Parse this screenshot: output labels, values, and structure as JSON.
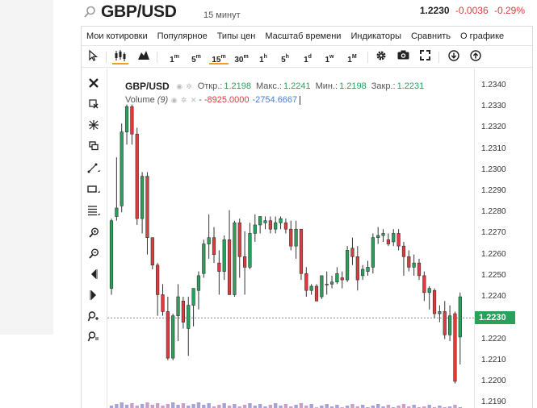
{
  "header": {
    "symbol": "GBP/USD",
    "interval": "15 минут",
    "last": "1.2230",
    "change": "-0.0036",
    "change_pct": "-0.29%"
  },
  "menu": [
    "Мои котировки",
    "Популярное",
    "Типы цен",
    "Масштаб времени",
    "Индикаторы",
    "Сравнить",
    "О графике"
  ],
  "toolbar": {
    "timeframes": [
      {
        "num": "1",
        "unit": "m"
      },
      {
        "num": "5",
        "unit": "m"
      },
      {
        "num": "15",
        "unit": "m"
      },
      {
        "num": "30",
        "unit": "m"
      },
      {
        "num": "1",
        "unit": "h"
      },
      {
        "num": "5",
        "unit": "h"
      },
      {
        "num": "1",
        "unit": "d"
      },
      {
        "num": "1",
        "unit": "w"
      },
      {
        "num": "1",
        "unit": "M"
      }
    ],
    "active_timeframe": "15m",
    "icons": [
      "cursor-icon",
      "candles-icon",
      "area-icon",
      "gear-icon",
      "camera-icon",
      "fullscreen-icon",
      "download-icon",
      "upload-icon"
    ]
  },
  "drawing_tools": [
    "close-icon",
    "cursor-cross-icon",
    "sparkle-icon",
    "layers-icon",
    "trend-line-icon",
    "rectangle-icon",
    "fibonacci-icon",
    "zoom-in-icon",
    "zoom-out-icon",
    "scroll-left-icon",
    "scroll-right-icon",
    "zoom-reset-icon",
    "zoom-fit-icon"
  ],
  "legend": {
    "symbol": "GBP/USD",
    "open_label": "Откр.:",
    "open": "1.2198",
    "high_label": "Макс.:",
    "high": "1.2241",
    "low_label": "Мин.:",
    "low": "1.2198",
    "close_label": "Закр.:",
    "close": "1.2231",
    "volume_label": "Volume",
    "volume_period": "(9)",
    "volume_val1": "-8925.0000",
    "volume_val2": "-2754.6667"
  },
  "price_axis": {
    "ticks": [
      "1.2340",
      "1.2330",
      "1.2320",
      "1.2310",
      "1.2300",
      "1.2290",
      "1.2280",
      "1.2270",
      "1.2260",
      "1.2250",
      "1.2240",
      "1.2230",
      "1.2220",
      "1.2210",
      "1.2200",
      "1.2190"
    ],
    "last_price_label": "1.2230"
  },
  "colors": {
    "up": "#26a25a",
    "down": "#e0393e",
    "accent": "#f0a020",
    "volume": "#a7a2d8"
  },
  "chart_data": {
    "type": "candlestick",
    "ylim": [
      1.2187,
      1.2348
    ],
    "last_price": 1.223,
    "candles": [
      [
        1.2244,
        1.2277,
        1.2241,
        1.2276
      ],
      [
        1.2278,
        1.2306,
        1.2276,
        1.2282
      ],
      [
        1.2283,
        1.2322,
        1.228,
        1.2318
      ],
      [
        1.2318,
        1.2331,
        1.2312,
        1.233
      ],
      [
        1.233,
        1.2331,
        1.2312,
        1.2317
      ],
      [
        1.2317,
        1.232,
        1.2274,
        1.2277
      ],
      [
        1.2277,
        1.2299,
        1.227,
        1.2297
      ],
      [
        1.2297,
        1.2299,
        1.226,
        1.2268
      ],
      [
        1.2268,
        1.2268,
        1.2253,
        1.2255
      ],
      [
        1.2255,
        1.2256,
        1.2231,
        1.2241
      ],
      [
        1.2241,
        1.2246,
        1.2231,
        1.2233
      ],
      [
        1.2233,
        1.224,
        1.221,
        1.2211
      ],
      [
        1.2211,
        1.2232,
        1.221,
        1.2231
      ],
      [
        1.2231,
        1.2246,
        1.2219,
        1.224
      ],
      [
        1.2238,
        1.224,
        1.2225,
        1.2228
      ],
      [
        1.2225,
        1.224,
        1.2212,
        1.2236
      ],
      [
        1.2236,
        1.2244,
        1.2226,
        1.2244
      ],
      [
        1.2243,
        1.2252,
        1.2234,
        1.225
      ],
      [
        1.2251,
        1.2267,
        1.2249,
        1.2265
      ],
      [
        1.2265,
        1.2279,
        1.2258,
        1.2268
      ],
      [
        1.2268,
        1.2273,
        1.2256,
        1.226
      ],
      [
        1.2256,
        1.2262,
        1.2241,
        1.2252
      ],
      [
        1.2252,
        1.2269,
        1.2248,
        1.2267
      ],
      [
        1.2267,
        1.2281,
        1.2241,
        1.2241
      ],
      [
        1.2241,
        1.2276,
        1.224,
        1.2275
      ],
      [
        1.2275,
        1.2277,
        1.2249,
        1.2259
      ],
      [
        1.2259,
        1.2271,
        1.2241,
        1.2254
      ],
      [
        1.2254,
        1.2275,
        1.2253,
        1.227
      ],
      [
        1.227,
        1.2279,
        1.2266,
        1.2274
      ],
      [
        1.2274,
        1.2278,
        1.227,
        1.2278
      ],
      [
        1.2275,
        1.2278,
        1.2272,
        1.2276
      ],
      [
        1.2276,
        1.2278,
        1.227,
        1.2272
      ],
      [
        1.2272,
        1.2278,
        1.227,
        1.2275
      ],
      [
        1.2275,
        1.2278,
        1.2272,
        1.2277
      ],
      [
        1.2275,
        1.2277,
        1.227,
        1.2272
      ],
      [
        1.2272,
        1.2276,
        1.2262,
        1.2264
      ],
      [
        1.2264,
        1.2276,
        1.2258,
        1.2272
      ],
      [
        1.2272,
        1.2272,
        1.2248,
        1.2251
      ],
      [
        1.2251,
        1.2254,
        1.224,
        1.2243
      ],
      [
        1.2243,
        1.2246,
        1.2241,
        1.2245
      ],
      [
        1.2245,
        1.2246,
        1.2238,
        1.2238
      ],
      [
        1.224,
        1.225,
        1.2239,
        1.225
      ],
      [
        1.2246,
        1.2252,
        1.2241,
        1.2246
      ],
      [
        1.2246,
        1.225,
        1.2244,
        1.2247
      ],
      [
        1.2247,
        1.2254,
        1.2246,
        1.2251
      ],
      [
        1.2249,
        1.2252,
        1.2244,
        1.2248
      ],
      [
        1.2248,
        1.2264,
        1.2247,
        1.2262
      ],
      [
        1.2263,
        1.2268,
        1.2255,
        1.2259
      ],
      [
        1.2259,
        1.2264,
        1.2243,
        1.2248
      ],
      [
        1.225,
        1.2255,
        1.2248,
        1.2253
      ],
      [
        1.2252,
        1.2257,
        1.225,
        1.2254
      ],
      [
        1.2254,
        1.227,
        1.2251,
        1.2268
      ],
      [
        1.2268,
        1.2273,
        1.2265,
        1.2269
      ],
      [
        1.2269,
        1.2272,
        1.2266,
        1.227
      ],
      [
        1.2267,
        1.227,
        1.2264,
        1.2265
      ],
      [
        1.2266,
        1.2272,
        1.2264,
        1.227
      ],
      [
        1.227,
        1.2272,
        1.2262,
        1.2264
      ],
      [
        1.2264,
        1.2266,
        1.225,
        1.2259
      ],
      [
        1.2259,
        1.2262,
        1.2252,
        1.2254
      ],
      [
        1.2254,
        1.226,
        1.225,
        1.2256
      ],
      [
        1.2256,
        1.2258,
        1.2248,
        1.225
      ],
      [
        1.225,
        1.2252,
        1.2238,
        1.2242
      ],
      [
        1.2242,
        1.2245,
        1.2234,
        1.2244
      ],
      [
        1.2243,
        1.2244,
        1.223,
        1.2232
      ],
      [
        1.2232,
        1.2236,
        1.2228,
        1.2233
      ],
      [
        1.2233,
        1.2238,
        1.222,
        1.2222
      ],
      [
        1.2222,
        1.2236,
        1.2219,
        1.2231
      ],
      [
        1.2232,
        1.2233,
        1.2199,
        1.22
      ],
      [
        1.2221,
        1.2242,
        1.2208,
        1.224
      ]
    ],
    "volume_direction": "down"
  }
}
